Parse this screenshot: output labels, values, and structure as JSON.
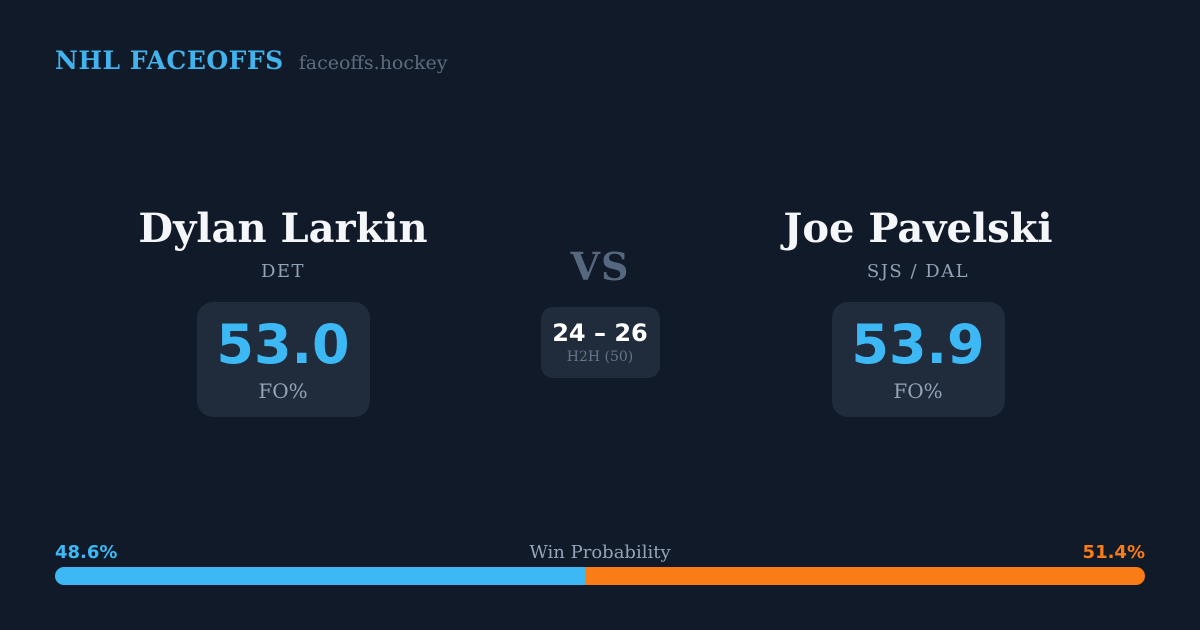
{
  "brand": {
    "title": "NHL FACEOFFS",
    "domain": "faceoffs.hockey"
  },
  "players": {
    "left": {
      "name": "Dylan Larkin",
      "team": "DET",
      "stat_value": "53.0",
      "stat_label": "FO%"
    },
    "right": {
      "name": "Joe Pavelski",
      "team": "SJS / DAL",
      "stat_value": "53.9",
      "stat_label": "FO%"
    }
  },
  "matchup": {
    "vs_label": "VS",
    "h2h_score": "24 – 26",
    "h2h_label": "H2H (50)"
  },
  "win_probability": {
    "label": "Win Probability",
    "left_pct_text": "48.6%",
    "right_pct_text": "51.4%",
    "left_value": 48.6,
    "right_value": 51.4
  },
  "colors": {
    "background": "#111a29",
    "card": "#202b3c",
    "accent_blue": "#3cb9f5",
    "accent_orange": "#f97c16",
    "text_primary": "#f4f6f9",
    "text_muted": "#64748b",
    "text_team": "#93a2b7"
  }
}
